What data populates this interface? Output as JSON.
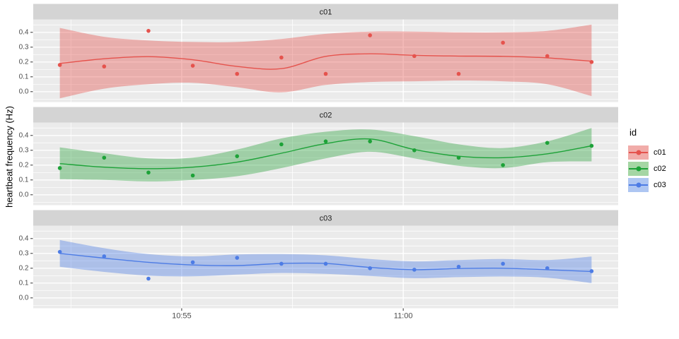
{
  "figure": {
    "y_axis_title": "heartbeat frequency (Hz)",
    "legend": {
      "title": "id",
      "items": [
        {
          "label": "c01",
          "color": "#E5534D",
          "swatch": "#F1ACA9"
        },
        {
          "label": "c02",
          "color": "#1DA238",
          "swatch": "#A5D6A4"
        },
        {
          "label": "c03",
          "color": "#4D7CE5",
          "swatch": "#AEC6F2"
        }
      ]
    }
  },
  "chart_data": {
    "type": "scatter",
    "description": "Faceted scatter plot (one panel per id) with loess smooth line and confidence ribbon over time",
    "facets": [
      "c01",
      "c02",
      "c03"
    ],
    "x": {
      "t_minutes": [
        0,
        1,
        2,
        3,
        4,
        5,
        6,
        7,
        8,
        9,
        10,
        11,
        12
      ],
      "axis_range_minutes": [
        -0.6,
        12.6
      ],
      "major_ticks": [
        {
          "t": 2.75,
          "label": "10:55"
        },
        {
          "t": 7.75,
          "label": "11:00"
        }
      ],
      "minor_gridlines_t": [
        0.25,
        5.25,
        10.25
      ]
    },
    "y": {
      "axis_range": [
        -0.07,
        0.487
      ],
      "major_ticks": [
        {
          "v": 0.0,
          "label": "0.0"
        },
        {
          "v": 0.1,
          "label": "0.1"
        },
        {
          "v": 0.2,
          "label": "0.2"
        },
        {
          "v": 0.3,
          "label": "0.3"
        },
        {
          "v": 0.4,
          "label": "0.4"
        }
      ],
      "minor_gridlines_v": [
        -0.05,
        0.05,
        0.15,
        0.25,
        0.35,
        0.45
      ]
    },
    "series": [
      {
        "id": "c01",
        "color": "#E5534D",
        "ribbon": "rgba(230,75,70,0.38)",
        "points": [
          0.18,
          0.17,
          0.41,
          0.175,
          0.12,
          0.23,
          0.12,
          0.38,
          0.24,
          0.12,
          0.33,
          0.24,
          0.2
        ],
        "smooth": [
          0.19,
          0.222,
          0.236,
          0.215,
          0.17,
          0.155,
          0.238,
          0.255,
          0.245,
          0.24,
          0.238,
          0.228,
          0.205
        ],
        "ci_upper": [
          0.43,
          0.37,
          0.345,
          0.335,
          0.335,
          0.355,
          0.39,
          0.405,
          0.405,
          0.4,
          0.4,
          0.41,
          0.452
        ],
        "ci_lower": [
          -0.045,
          0.02,
          0.05,
          0.06,
          0.03,
          -0.005,
          0.045,
          0.065,
          0.07,
          0.075,
          0.07,
          0.05,
          -0.03
        ]
      },
      {
        "id": "c02",
        "color": "#1DA238",
        "ribbon": "rgba(25,155,45,0.36)",
        "points": [
          0.18,
          0.25,
          0.15,
          0.13,
          0.26,
          0.34,
          0.36,
          0.36,
          0.3,
          0.25,
          0.2,
          0.35,
          0.33
        ],
        "smooth": [
          0.21,
          0.186,
          0.176,
          0.186,
          0.22,
          0.28,
          0.345,
          0.376,
          0.305,
          0.26,
          0.25,
          0.276,
          0.33
        ],
        "ci_upper": [
          0.32,
          0.28,
          0.245,
          0.25,
          0.305,
          0.38,
          0.425,
          0.44,
          0.395,
          0.34,
          0.315,
          0.36,
          0.45
        ],
        "ci_lower": [
          0.105,
          0.1,
          0.09,
          0.1,
          0.125,
          0.18,
          0.245,
          0.29,
          0.245,
          0.195,
          0.18,
          0.22,
          0.225
        ]
      },
      {
        "id": "c03",
        "color": "#4D7CE5",
        "ribbon": "rgba(70,120,230,0.38)",
        "points": [
          0.31,
          0.28,
          0.13,
          0.24,
          0.27,
          0.23,
          0.23,
          0.2,
          0.19,
          0.21,
          0.23,
          0.2,
          0.18
        ],
        "smooth": [
          0.3,
          0.268,
          0.24,
          0.222,
          0.218,
          0.232,
          0.232,
          0.205,
          0.19,
          0.198,
          0.2,
          0.19,
          0.178
        ],
        "ci_upper": [
          0.39,
          0.335,
          0.295,
          0.28,
          0.293,
          0.295,
          0.287,
          0.262,
          0.246,
          0.255,
          0.262,
          0.255,
          0.279
        ],
        "ci_lower": [
          0.21,
          0.175,
          0.15,
          0.145,
          0.157,
          0.168,
          0.162,
          0.148,
          0.133,
          0.14,
          0.144,
          0.136,
          0.1
        ]
      }
    ],
    "style": {
      "panel_bg": "#EBEBEB",
      "strip_bg": "#D4D4D4",
      "grid_color": "#FFFFFF",
      "tick_text": "#4D4D4D",
      "strip_text": "#1A1A1A",
      "tick_mark": "#333333"
    },
    "legend_position": "right"
  }
}
